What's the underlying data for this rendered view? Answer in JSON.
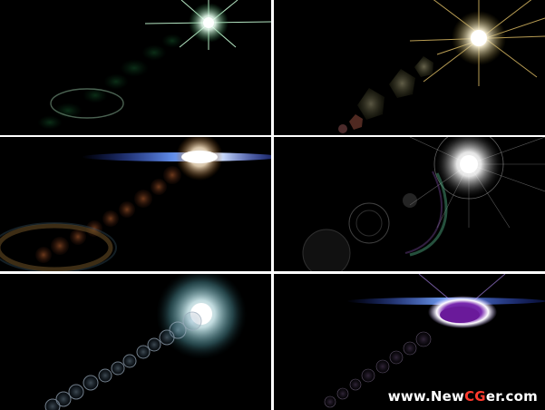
{
  "watermark": {
    "prefix": "www.New",
    "highlight": "CG",
    "suffix": "er.com",
    "colors": {
      "text": "#ffffff",
      "highlight": "#ff3b2e"
    }
  },
  "panels": [
    {
      "id": "green-starburst-flare",
      "accent": "#3fae6a"
    },
    {
      "id": "gold-starburst-hexagon-flare",
      "accent": "#c9a64a"
    },
    {
      "id": "blue-anamorphic-orange-flare",
      "accent": "#4a78ff"
    },
    {
      "id": "white-sun-ring-flare",
      "accent": "#ffffff"
    },
    {
      "id": "cyan-halo-bokeh-flare",
      "accent": "#7fd6e0"
    },
    {
      "id": "purple-ring-anamorphic-flare",
      "accent": "#9a4ad6"
    }
  ]
}
